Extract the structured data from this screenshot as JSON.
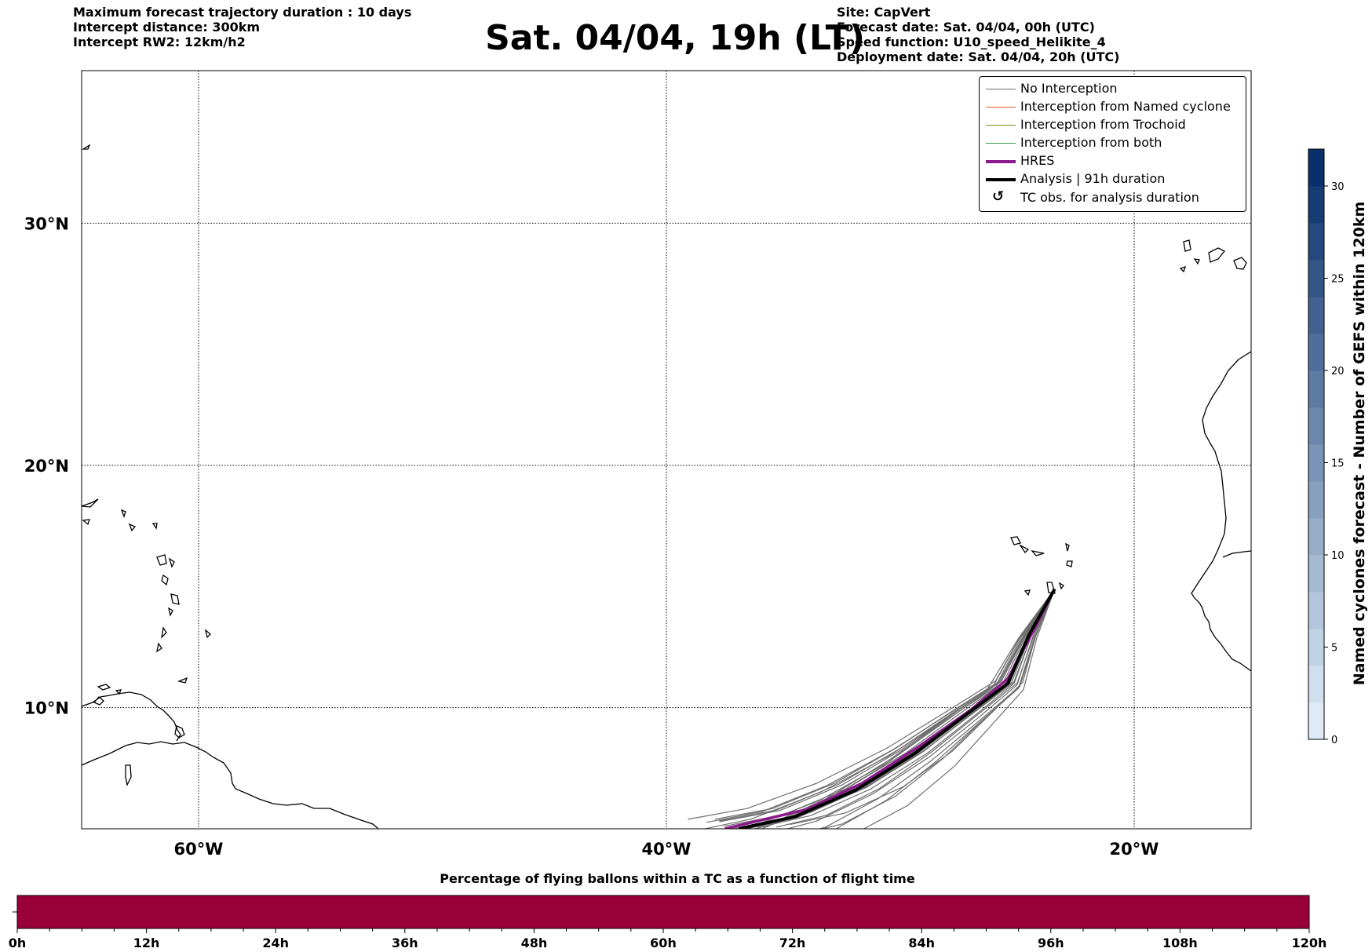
{
  "header": {
    "left_lines": [
      "Maximum forecast trajectory duration : 10 days",
      "Intercept distance: 300km",
      "Intercept RW2: 12km/h2"
    ],
    "title": "Sat. 04/04, 19h (LT)",
    "right_lines": [
      "Site: CapVert",
      "Forecast date: Sat. 04/04, 00h (UTC)",
      "Speed function: U10_speed_Helikite_4",
      "Deployment date: Sat. 04/04, 20h (UTC)"
    ]
  },
  "legend": {
    "items": [
      {
        "label": "No Interception",
        "color": "#6e6e6e",
        "style": "thin"
      },
      {
        "label": "Interception from Named cyclone",
        "color": "#e8622c",
        "style": "thin"
      },
      {
        "label": "Interception from Trochoid",
        "color": "#8a8a10",
        "style": "thin"
      },
      {
        "label": "Interception from both",
        "color": "#3a9a3a",
        "style": "thin"
      },
      {
        "label": "HRES",
        "color": "#8b1a8b",
        "style": "thick"
      },
      {
        "label": "Analysis | 91h duration",
        "color": "#000000",
        "style": "thick"
      },
      {
        "label": "TC obs. for analysis duration",
        "color": "#000000",
        "style": "glyph",
        "glyph": "↺"
      }
    ]
  },
  "chart_data": [
    {
      "type": "map",
      "x_ticks": [
        "60°W",
        "40°W",
        "20°W"
      ],
      "y_ticks": [
        "30°N",
        "20°N",
        "10°N"
      ],
      "lon_range": [
        -65,
        -15
      ],
      "lat_range": [
        5,
        36.3
      ],
      "grid": true,
      "site_position": {
        "lon": -23.4,
        "lat": 14.9
      },
      "series": [
        {
          "name": "HRES",
          "color": "#8b1a8b",
          "lon": [
            -23.4,
            -24.3,
            -25.4,
            -27.0,
            -29.2,
            -31.6,
            -34.0,
            -37.5
          ],
          "lat": [
            14.9,
            13.2,
            11.2,
            9.9,
            8.4,
            6.9,
            5.8,
            5.0
          ]
        },
        {
          "name": "Analysis | 91h duration",
          "color": "#000000",
          "lon": [
            -23.4,
            -24.5,
            -25.4,
            -27.2,
            -29.4,
            -31.9,
            -34.5,
            -36.9
          ],
          "lat": [
            14.9,
            13.0,
            11.0,
            9.7,
            8.1,
            6.6,
            5.5,
            5.0
          ]
        }
      ]
    },
    {
      "type": "colorbar",
      "label": "Named cyclones forecast - Number of GEFS within 120km",
      "range": [
        0,
        32
      ],
      "ticks": [
        0,
        5,
        10,
        15,
        20,
        25,
        30
      ],
      "levels": 16,
      "colormap": "Blues"
    },
    {
      "type": "bar",
      "title": "Percentage of flying ballons within a TC as a function of flight time",
      "x_ticks": [
        "0h",
        "12h",
        "24h",
        "36h",
        "48h",
        "60h",
        "72h",
        "84h",
        "96h",
        "108h",
        "120h"
      ],
      "range": [
        0,
        120
      ],
      "fill_color": "#990038"
    }
  ]
}
